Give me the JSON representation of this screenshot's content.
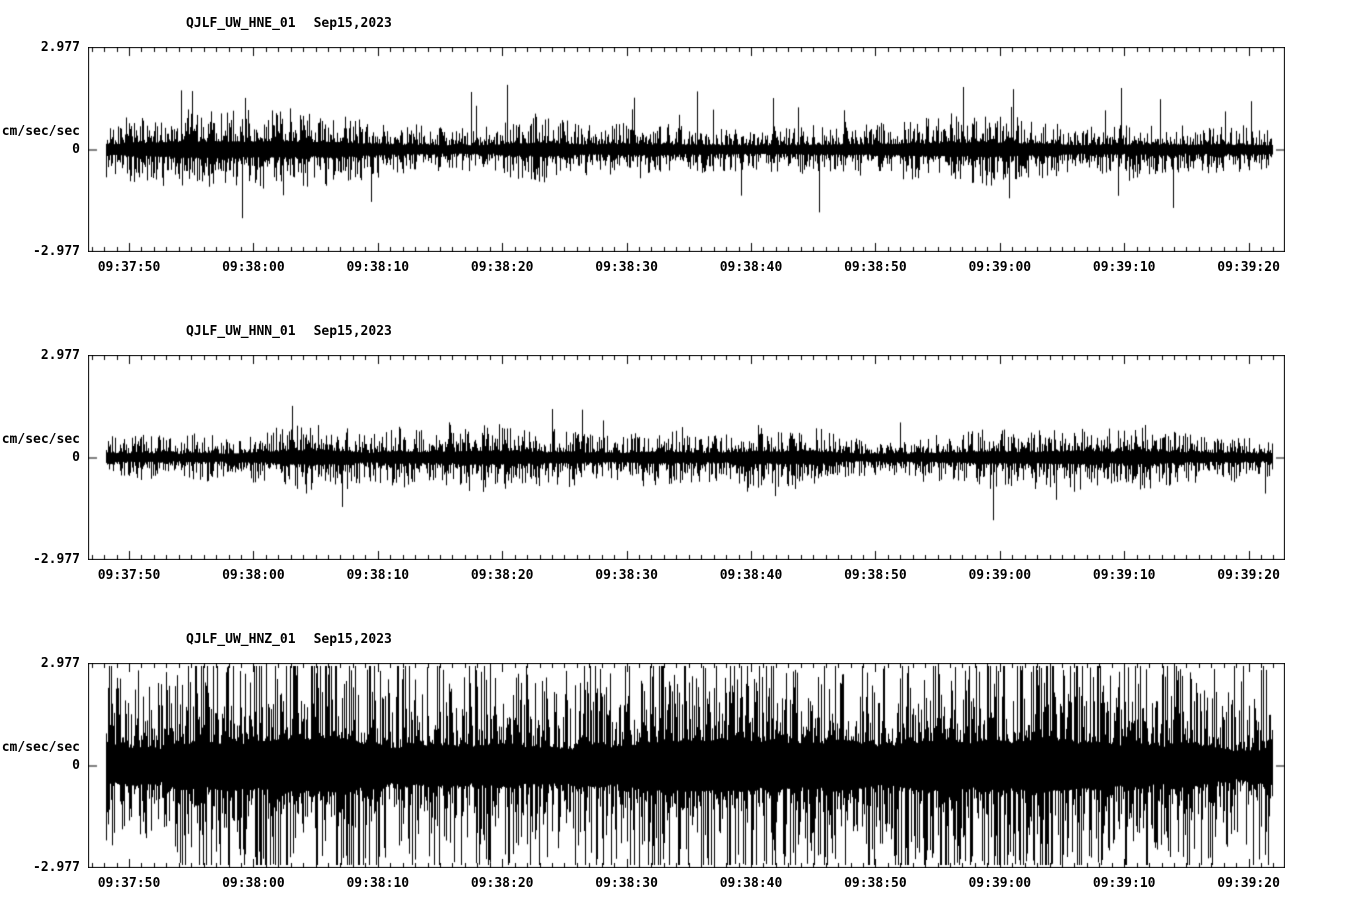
{
  "background": "#ffffff",
  "trace_color": "#000000",
  "chart_data": [
    {
      "type": "line",
      "kind": "seismogram",
      "station": "QJLF_UW_HNE_01",
      "date": "Sep15,2023",
      "ylabel": "cm/sec/sec",
      "ymax_label": "2.977",
      "yzero_label": "0",
      "ymin_label": "-2.977",
      "ylim": [
        -2.977,
        2.977
      ],
      "xticks": [
        "09:37:50",
        "09:38:00",
        "09:38:10",
        "09:38:20",
        "09:38:30",
        "09:38:40",
        "09:38:50",
        "09:39:00",
        "09:39:10",
        "09:39:20"
      ],
      "x_major_interval_sec": 10,
      "x_minor_interval_sec": 1,
      "grid": false,
      "legend": "none",
      "noise": {
        "base": 0.62,
        "spike_prob": 0.012,
        "spike": 1.6,
        "seed": 7
      }
    },
    {
      "type": "line",
      "kind": "seismogram",
      "station": "QJLF_UW_HNN_01",
      "date": "Sep15,2023",
      "ylabel": "cm/sec/sec",
      "ymax_label": "2.977",
      "yzero_label": "0",
      "ymin_label": "-2.977",
      "ylim": [
        -2.977,
        2.977
      ],
      "xticks": [
        "09:37:50",
        "09:38:00",
        "09:38:10",
        "09:38:20",
        "09:38:30",
        "09:38:40",
        "09:38:50",
        "09:39:00",
        "09:39:10",
        "09:39:20"
      ],
      "x_major_interval_sec": 10,
      "x_minor_interval_sec": 1,
      "grid": false,
      "legend": "none",
      "noise": {
        "base": 0.55,
        "spike_prob": 0.009,
        "spike": 1.5,
        "seed": 13
      }
    },
    {
      "type": "line",
      "kind": "seismogram",
      "station": "QJLF_UW_HNZ_01",
      "date": "Sep15,2023",
      "ylabel": "cm/sec/sec",
      "ymax_label": "2.977",
      "yzero_label": "0",
      "ymin_label": "-2.977",
      "ylim": [
        -2.977,
        2.977
      ],
      "xticks": [
        "09:37:50",
        "09:38:00",
        "09:38:10",
        "09:38:20",
        "09:38:30",
        "09:38:40",
        "09:38:50",
        "09:39:00",
        "09:39:10",
        "09:39:20"
      ],
      "x_major_interval_sec": 10,
      "x_minor_interval_sec": 1,
      "grid": false,
      "legend": "none",
      "noise": {
        "base": 2.0,
        "spike_prob": 0.05,
        "spike": 0.55,
        "seed": 42
      }
    }
  ]
}
